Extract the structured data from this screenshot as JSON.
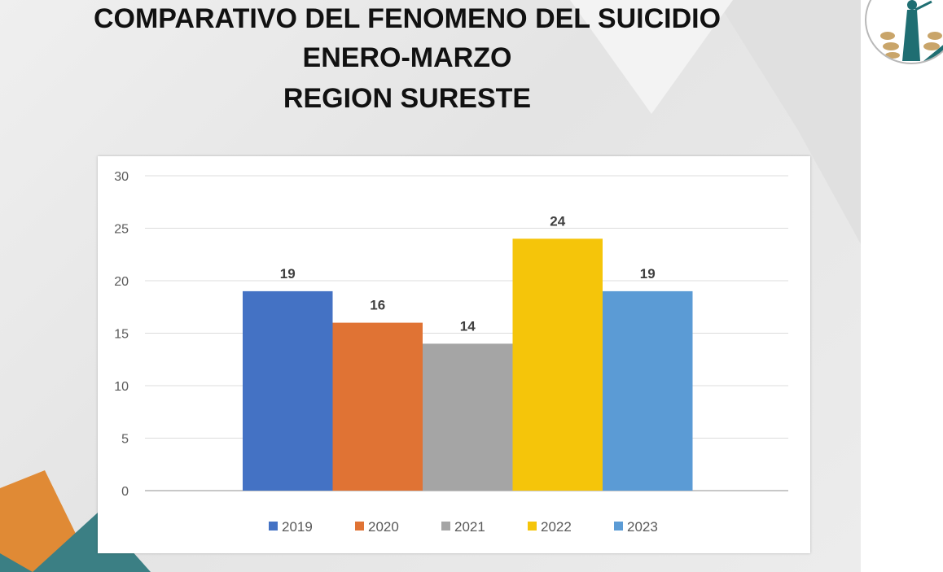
{
  "title_lines": [
    "COMPARATIVO DEL FENOMENO DEL SUICIDIO",
    "ENERO-MARZO",
    "REGION SURESTE"
  ],
  "chart_data": {
    "type": "bar",
    "categories": [
      "2019",
      "2020",
      "2021",
      "2022",
      "2023"
    ],
    "values": [
      19,
      16,
      14,
      24,
      19
    ],
    "colors": [
      "#4472C4",
      "#E07334",
      "#A5A5A5",
      "#F5C50A",
      "#5B9BD5"
    ],
    "ylim": [
      0,
      30
    ],
    "yticks": [
      0,
      5,
      10,
      15,
      20,
      25,
      30
    ],
    "grid": true,
    "legend": "bottom",
    "data_labels": true
  },
  "logo": {
    "icon": "justice-statue-laurel-logo"
  }
}
